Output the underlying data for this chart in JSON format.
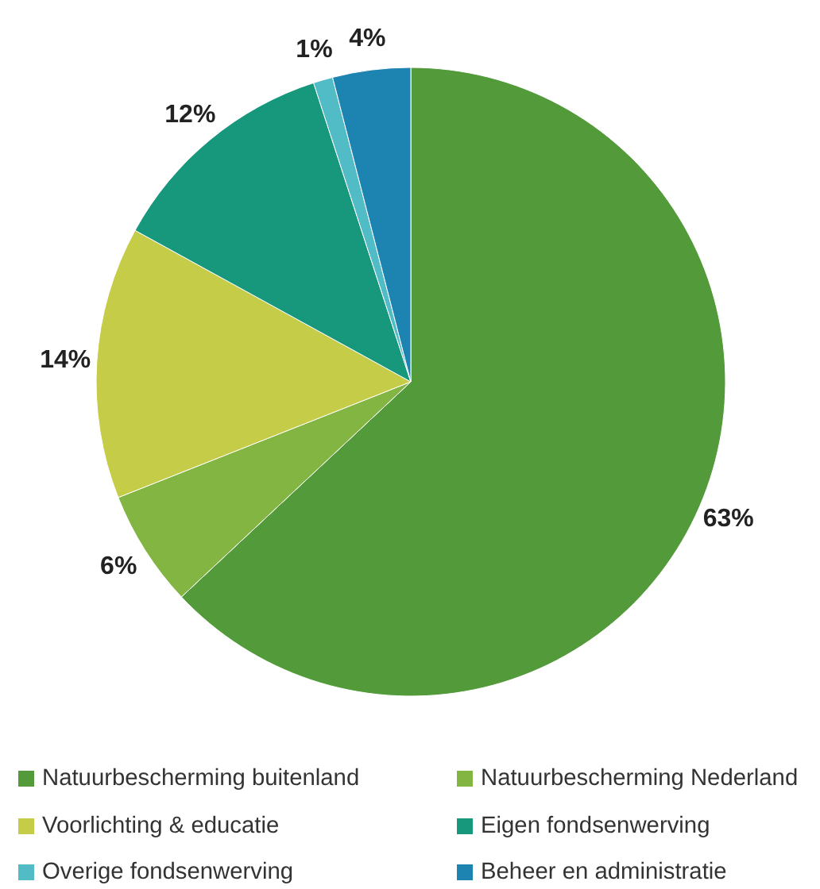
{
  "chart_data": {
    "type": "pie",
    "categories": [
      "Natuurbescherming buitenland",
      "Natuurbescherming Nederland",
      "Voorlichting & educatie",
      "Eigen fondsenwerving",
      "Overige fondsenwerving",
      "Beheer en administratie"
    ],
    "values": [
      63,
      6,
      14,
      12,
      1,
      4
    ],
    "colors": [
      "#539b3a",
      "#82b541",
      "#c5cd48",
      "#17977b",
      "#52bcc6",
      "#1d83b0"
    ],
    "value_labels": [
      "63%",
      "6%",
      "14%",
      "12%",
      "1%",
      "4%"
    ],
    "legend": "bottom"
  }
}
